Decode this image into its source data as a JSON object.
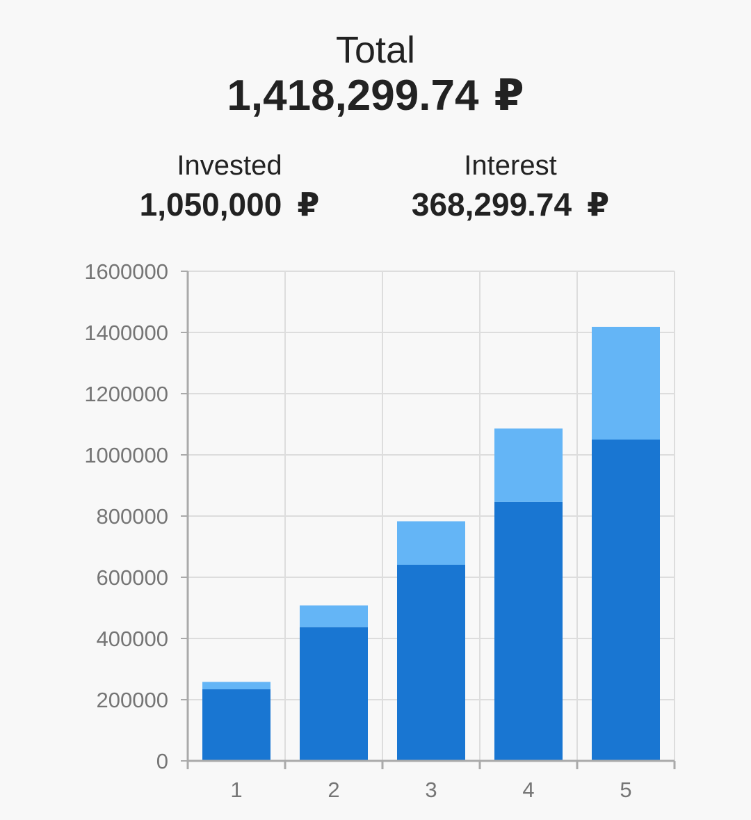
{
  "summary": {
    "total_label": "Total",
    "total_value": "1,418,299.74",
    "invested_label": "Invested",
    "invested_value": "1,050,000",
    "interest_label": "Interest",
    "interest_value": "368,299.74",
    "currency_symbol": "₽"
  },
  "colors": {
    "invested": "#1976d2",
    "interest": "#64b5f6",
    "grid": "#dddddd",
    "axis": "#aaaaaa"
  },
  "chart_data": {
    "type": "bar",
    "stacked": true,
    "categories": [
      "1",
      "2",
      "3",
      "4",
      "5"
    ],
    "series": [
      {
        "key": "invested",
        "values": [
          234000,
          437000,
          641000,
          846000,
          1050000
        ]
      },
      {
        "key": "interest",
        "values": [
          24000,
          71000,
          142000,
          240000,
          368299.74
        ]
      }
    ],
    "yticks": [
      "0",
      "200000",
      "400000",
      "600000",
      "800000",
      "1000000",
      "1200000",
      "1400000",
      "1600000"
    ],
    "ylim": [
      0,
      1600000
    ],
    "grid": true,
    "legend": "none"
  }
}
